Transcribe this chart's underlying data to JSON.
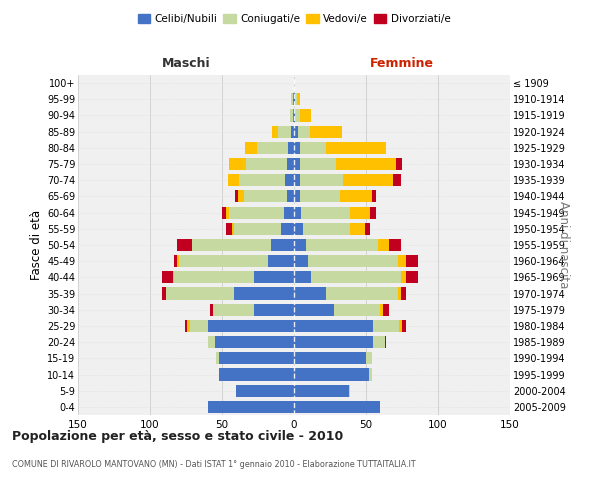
{
  "age_groups": [
    "0-4",
    "5-9",
    "10-14",
    "15-19",
    "20-24",
    "25-29",
    "30-34",
    "35-39",
    "40-44",
    "45-49",
    "50-54",
    "55-59",
    "60-64",
    "65-69",
    "70-74",
    "75-79",
    "80-84",
    "85-89",
    "90-94",
    "95-99",
    "100+"
  ],
  "birth_years": [
    "2005-2009",
    "2000-2004",
    "1995-1999",
    "1990-1994",
    "1985-1989",
    "1980-1984",
    "1975-1979",
    "1970-1974",
    "1965-1969",
    "1960-1964",
    "1955-1959",
    "1950-1954",
    "1945-1949",
    "1940-1944",
    "1935-1939",
    "1930-1934",
    "1925-1929",
    "1920-1924",
    "1915-1919",
    "1910-1914",
    "≤ 1909"
  ],
  "male": {
    "celibi": [
      60,
      40,
      52,
      52,
      55,
      60,
      28,
      42,
      28,
      18,
      16,
      9,
      7,
      5,
      6,
      5,
      4,
      2,
      1,
      1,
      0
    ],
    "coniugati": [
      0,
      0,
      0,
      2,
      5,
      12,
      28,
      47,
      55,
      62,
      55,
      33,
      38,
      30,
      32,
      28,
      22,
      9,
      2,
      1,
      0
    ],
    "vedovi": [
      0,
      0,
      0,
      0,
      0,
      2,
      0,
      0,
      1,
      1,
      0,
      1,
      2,
      4,
      8,
      12,
      8,
      4,
      0,
      0,
      0
    ],
    "divorziati": [
      0,
      0,
      0,
      0,
      0,
      2,
      2,
      3,
      8,
      2,
      10,
      4,
      3,
      2,
      0,
      0,
      0,
      0,
      0,
      0,
      0
    ]
  },
  "female": {
    "nubili": [
      60,
      38,
      52,
      50,
      55,
      55,
      28,
      22,
      12,
      10,
      8,
      6,
      5,
      4,
      4,
      4,
      4,
      3,
      1,
      1,
      0
    ],
    "coniugate": [
      0,
      1,
      2,
      4,
      8,
      18,
      32,
      50,
      62,
      62,
      50,
      33,
      34,
      28,
      30,
      25,
      18,
      8,
      3,
      1,
      0
    ],
    "vedove": [
      0,
      0,
      0,
      0,
      0,
      2,
      2,
      2,
      4,
      6,
      8,
      10,
      14,
      22,
      35,
      42,
      42,
      22,
      8,
      2,
      0
    ],
    "divorziate": [
      0,
      0,
      0,
      0,
      1,
      3,
      4,
      4,
      8,
      8,
      8,
      4,
      4,
      3,
      5,
      4,
      0,
      0,
      0,
      0,
      0
    ]
  },
  "colors": {
    "celibi": "#4472c4",
    "coniugati": "#c5d9a0",
    "vedovi": "#ffc000",
    "divorziati": "#c0001e"
  },
  "title": "Popolazione per età, sesso e stato civile - 2010",
  "subtitle": "COMUNE DI RIVAROLO MANTOVANO (MN) - Dati ISTAT 1° gennaio 2010 - Elaborazione TUTTAITALIA.IT",
  "xlabel_left": "Maschi",
  "xlabel_right": "Femmine",
  "ylabel_left": "Fasce di età",
  "ylabel_right": "Anni di nascita",
  "legend_labels": [
    "Celibi/Nubili",
    "Coniugati/e",
    "Vedovi/e",
    "Divorziati/e"
  ],
  "xlim": 150,
  "background_color": "#ffffff",
  "plot_bg": "#f0f0f0",
  "grid_color": "#cccccc"
}
